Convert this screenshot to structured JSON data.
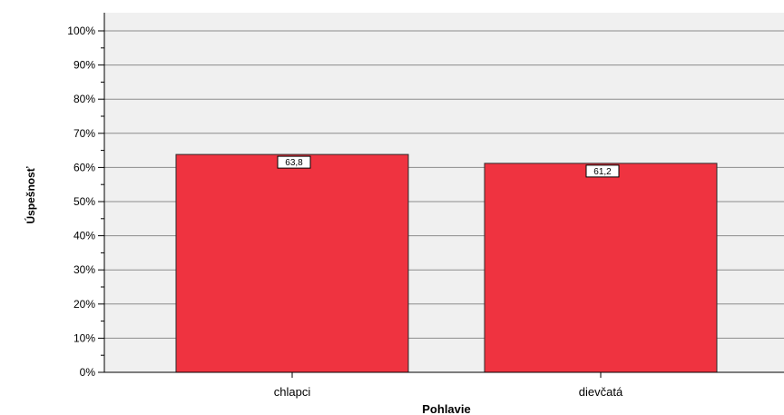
{
  "chart_data": {
    "type": "bar",
    "categories": [
      "chlapci",
      "dievčatá"
    ],
    "values": [
      63.8,
      61.2
    ],
    "data_labels": [
      "63,8",
      "61,2"
    ],
    "xlabel": "Pohlavie",
    "ylabel": "Úspešnosť",
    "ylim": [
      0,
      100
    ],
    "yticks": [
      "0%",
      "10%",
      "20%",
      "30%",
      "40%",
      "50%",
      "60%",
      "70%",
      "80%",
      "90%",
      "100%"
    ],
    "grid": true,
    "legend": "none",
    "colors": {
      "bar": "#EF3340",
      "background": "#F0F0F0",
      "grid": "#8C8C8C"
    }
  }
}
